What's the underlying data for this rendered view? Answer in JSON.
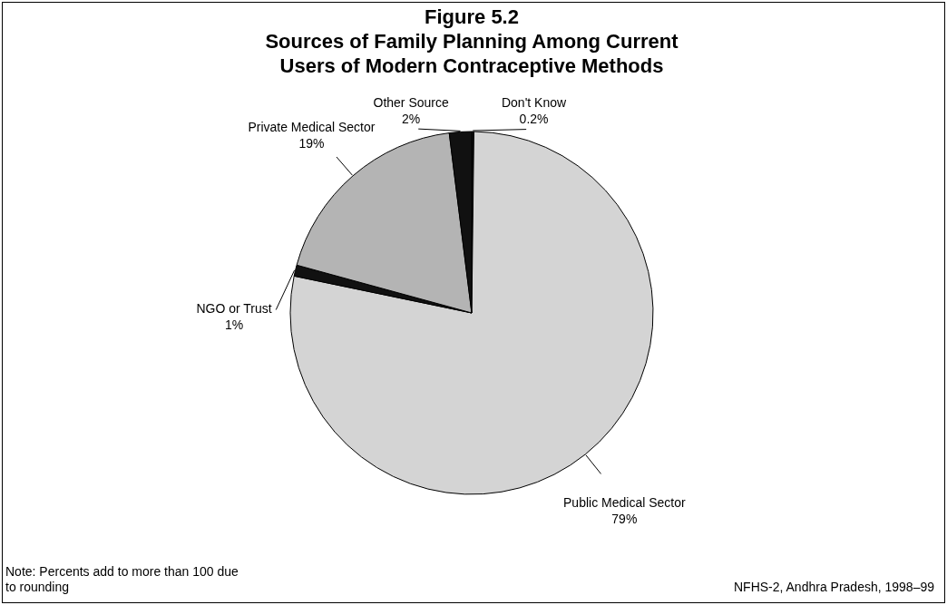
{
  "chart_data": {
    "type": "pie",
    "title": "Figure 5.2\nSources of Family Planning Among Current\nUsers of Modern Contraceptive Methods",
    "categories": [
      "Don't Know",
      "Public Medical Sector",
      "NGO or Trust",
      "Private Medical Sector",
      "Other Source"
    ],
    "values": [
      0.2,
      79,
      1,
      19,
      2
    ],
    "value_labels": [
      "0.2%",
      "79%",
      "1%",
      "19%",
      "2%"
    ],
    "colors": [
      "#111111",
      "#d4d4d4",
      "#111111",
      "#b4b4b4",
      "#111111"
    ],
    "legend": false,
    "annotations": [
      "Note: Percents add to more than 100 due\nto rounding",
      "NFHS-2, Andhra Pradesh, 1998–99"
    ]
  }
}
